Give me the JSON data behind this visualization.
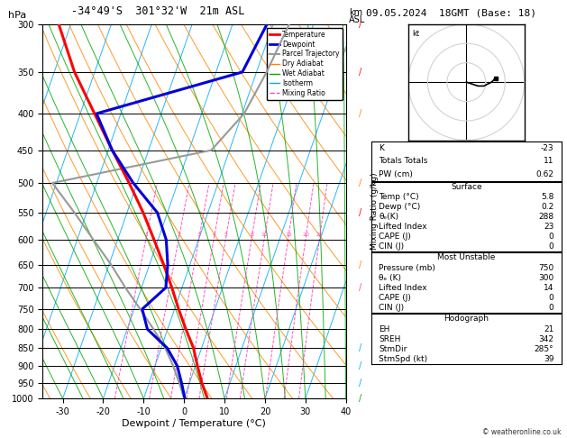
{
  "title_left": "-34°49'S  301°32'W  21m ASL",
  "title_right": "09.05.2024  18GMT (Base: 18)",
  "xlabel": "Dewpoint / Temperature (°C)",
  "pmin": 300,
  "pmax": 1000,
  "xlim": [
    -35,
    40
  ],
  "skew": 32,
  "pressure_levels": [
    300,
    350,
    400,
    450,
    500,
    550,
    600,
    650,
    700,
    750,
    800,
    850,
    900,
    950,
    1000
  ],
  "km_ticks": {
    "8": 350,
    "7": 408,
    "6": 478,
    "5": 562,
    "4": 617,
    "3": 710,
    "2": 810,
    "1": 907
  },
  "lcl_pressure": 958,
  "temp_p": [
    1000,
    950,
    900,
    850,
    800,
    750,
    700,
    650,
    600,
    550,
    500,
    450,
    400,
    350,
    300
  ],
  "temp_T": [
    5.8,
    3.0,
    0.5,
    -2.0,
    -5.5,
    -9.0,
    -12.5,
    -16.5,
    -21.0,
    -26.0,
    -32.0,
    -39.0,
    -46.5,
    -55.0,
    -63.0
  ],
  "dewp_p": [
    1000,
    950,
    900,
    850,
    800,
    750,
    700,
    650,
    600,
    550,
    500,
    450,
    400,
    350,
    300
  ],
  "dewp_T": [
    0.2,
    -2.0,
    -4.5,
    -8.5,
    -15.0,
    -18.0,
    -14.0,
    -15.5,
    -18.0,
    -22.5,
    -31.0,
    -39.0,
    -46.0,
    -13.5,
    -11.5
  ],
  "parcel_p": [
    1000,
    950,
    900,
    850,
    800,
    750,
    700,
    650,
    600,
    550,
    500,
    450,
    400,
    350,
    300
  ],
  "parcel_T": [
    0.0,
    -2.5,
    -5.5,
    -9.0,
    -13.5,
    -18.5,
    -24.0,
    -29.5,
    -36.0,
    -43.0,
    -51.0,
    -14.5,
    -9.5,
    -7.5,
    -6.0
  ],
  "mixing_ratio_vals": [
    1,
    2,
    3,
    4,
    5,
    8,
    10,
    15,
    20,
    25
  ],
  "colors": {
    "temp": "#ff0000",
    "dewp": "#0000dd",
    "parcel": "#999999",
    "dry_adiabat": "#ff8800",
    "wet_adiabat": "#00aa00",
    "isotherm": "#00aaff",
    "mixing_ratio": "#ff44bb"
  },
  "stats_k": "-23",
  "stats_tt": "11",
  "stats_pw": "0.62",
  "surf_temp": "5.8",
  "surf_dewp": "0.2",
  "surf_thetae": "288",
  "surf_li": "23",
  "surf_cape": "0",
  "surf_cin": "0",
  "mu_pres": "750",
  "mu_thetae": "300",
  "mu_li": "14",
  "mu_cape": "0",
  "mu_cin": "0",
  "hodo_eh": "21",
  "hodo_sreh": "342",
  "hodo_stmdir": "285°",
  "hodo_stmspd": "39"
}
